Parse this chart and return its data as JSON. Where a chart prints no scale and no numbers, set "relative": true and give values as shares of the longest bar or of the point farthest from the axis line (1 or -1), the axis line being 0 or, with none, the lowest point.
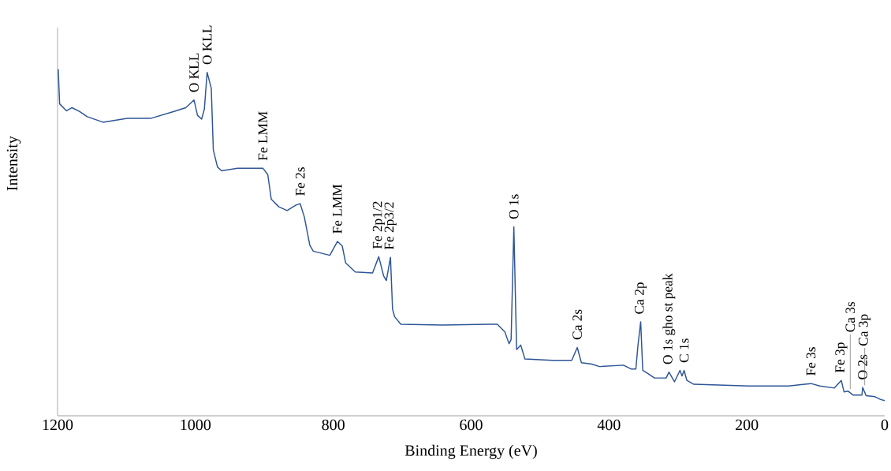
{
  "chart_data": {
    "type": "line",
    "relative": true,
    "xlabel": "Binding Energy (eV)",
    "ylabel": "Intensity",
    "color": "#2e5597",
    "xlim": [
      1200,
      0
    ],
    "xticks": [
      1200,
      1000,
      800,
      600,
      400,
      200,
      0
    ],
    "x": [
      1199,
      1197,
      1187,
      1179,
      1168,
      1157,
      1134,
      1099,
      1065,
      1031,
      1014,
      1002,
      997,
      991,
      987,
      983,
      977,
      974,
      968,
      962,
      939,
      902,
      895,
      890,
      879,
      867,
      854,
      848,
      842,
      834,
      829,
      805,
      794,
      787,
      782,
      768,
      743,
      734,
      727,
      723,
      717,
      714,
      711,
      702,
      642,
      574,
      562,
      551,
      545,
      542,
      538,
      534,
      528,
      522,
      482,
      454,
      446,
      440,
      425,
      414,
      379,
      368,
      361,
      358,
      354,
      351,
      345,
      334,
      317,
      313,
      305,
      297,
      294,
      291,
      287,
      277,
      197,
      139,
      107,
      94,
      73,
      63,
      59,
      53,
      46,
      33,
      32,
      27,
      14,
      6,
      0
    ],
    "values": [
      1.0,
      0.9,
      0.88,
      0.889,
      0.878,
      0.863,
      0.847,
      0.858,
      0.858,
      0.878,
      0.889,
      0.911,
      0.867,
      0.856,
      0.885,
      0.991,
      0.945,
      0.767,
      0.718,
      0.707,
      0.714,
      0.714,
      0.696,
      0.625,
      0.603,
      0.592,
      0.608,
      0.612,
      0.574,
      0.492,
      0.475,
      0.463,
      0.503,
      0.49,
      0.441,
      0.415,
      0.412,
      0.459,
      0.404,
      0.39,
      0.457,
      0.308,
      0.286,
      0.264,
      0.262,
      0.264,
      0.264,
      0.242,
      0.208,
      0.22,
      0.545,
      0.191,
      0.204,
      0.164,
      0.16,
      0.16,
      0.197,
      0.153,
      0.149,
      0.142,
      0.146,
      0.135,
      0.135,
      0.202,
      0.271,
      0.131,
      0.124,
      0.109,
      0.109,
      0.126,
      0.098,
      0.131,
      0.115,
      0.131,
      0.102,
      0.091,
      0.086,
      0.086,
      0.093,
      0.086,
      0.08,
      0.102,
      0.069,
      0.071,
      0.06,
      0.06,
      0.082,
      0.058,
      0.055,
      0.047,
      0.044
    ],
    "annotations": [
      {
        "text": "O KLL",
        "x": 1002,
        "y": 0.911
      },
      {
        "text": "O KLL",
        "x": 983,
        "y": 0.991
      },
      {
        "text": "Fe LMM",
        "x": 902,
        "y": 0.714
      },
      {
        "text": "Fe 2s",
        "x": 848,
        "y": 0.612
      },
      {
        "text": "Fe LMM",
        "x": 794,
        "y": 0.503
      },
      {
        "text": "Fe 2p1/2",
        "x": 734,
        "y": 0.459
      },
      {
        "text": "Fe 2p3/2",
        "x": 717,
        "y": 0.457
      },
      {
        "text": "O 1s",
        "x": 538,
        "y": 0.545
      },
      {
        "text": "Ca 2s",
        "x": 446,
        "y": 0.197
      },
      {
        "text": "Ca 2p",
        "x": 354,
        "y": 0.271
      },
      {
        "text": "O 1s gho st peak",
        "x": 313,
        "y": 0.126
      },
      {
        "text": "C 1s",
        "x": 291,
        "y": 0.131
      },
      {
        "text": "Fe 3s",
        "x": 107,
        "y": 0.093
      },
      {
        "text": "Fe 3p",
        "x": 63,
        "y": 0.102
      },
      {
        "text": "Ca 3s",
        "x": 50,
        "y": 0.071
      },
      {
        "text": "O 2s",
        "x": 32,
        "y": 0.082
      },
      {
        "text": "Ca 3p",
        "x": 29,
        "y": 0.082
      }
    ]
  }
}
